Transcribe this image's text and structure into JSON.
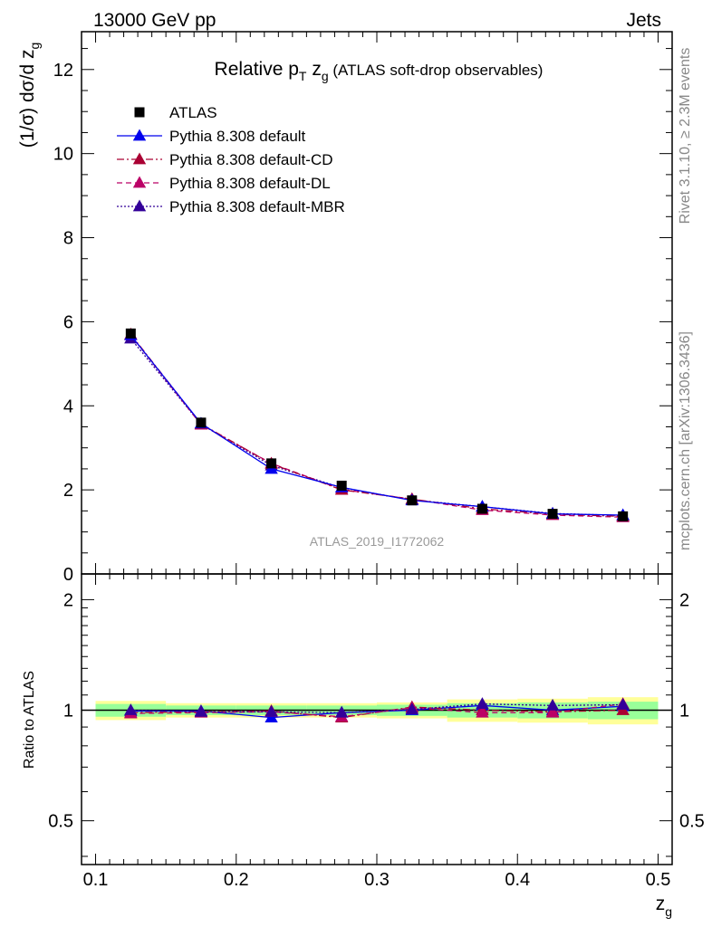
{
  "header": {
    "left": "13000 GeV pp",
    "right": "Jets"
  },
  "main_title": {
    "prefix": "Relative p",
    "sub": "T",
    "mid": " z",
    "sub2": "g",
    "suffix": " (ATLAS soft-drop observables)"
  },
  "analysis_label": "ATLAS_2019_I1772062",
  "side_labels": {
    "rivet": "Rivet 3.1.10, ≥ 2.3M events",
    "mcplots": "mcplots.cern.ch [arXiv:1306.3436]"
  },
  "y_main_label": {
    "text": "(1/σ) dσ/d z",
    "sub": "g"
  },
  "y_ratio_label": "Ratio to ATLAS",
  "x_label": {
    "text": "z",
    "sub": "g"
  },
  "colors": {
    "data": "#000000",
    "default": "#0000ee",
    "default_cd": "#aa0033",
    "default_dl": "#bb0066",
    "default_mbr": "#330099",
    "band_inner": "#99ff99",
    "band_outer": "#ffff99"
  },
  "chart_data": [
    {
      "type": "line",
      "panel": "main",
      "x": [
        0.125,
        0.175,
        0.225,
        0.275,
        0.325,
        0.375,
        0.425,
        0.475
      ],
      "xlim": [
        0.09,
        0.51
      ],
      "ylim": [
        0,
        12.9
      ],
      "xticks": [
        "0.1",
        "0.2",
        "0.3",
        "0.4",
        "0.5"
      ],
      "yticks": [
        "0",
        "2",
        "4",
        "6",
        "8",
        "10",
        "12"
      ],
      "series": [
        {
          "name": "ATLAS",
          "style": "data",
          "marker": "square",
          "values": [
            5.72,
            3.6,
            2.63,
            2.1,
            1.75,
            1.55,
            1.43,
            1.37
          ]
        },
        {
          "name": "Pythia 8.308 default",
          "style": "solid",
          "marker": "triangle",
          "values": [
            5.68,
            3.58,
            2.5,
            2.06,
            1.75,
            1.6,
            1.43,
            1.4
          ]
        },
        {
          "name": "Pythia 8.308 default-CD",
          "style": "dashdot",
          "marker": "triangle",
          "values": [
            5.7,
            3.57,
            2.62,
            2.0,
            1.78,
            1.55,
            1.42,
            1.37
          ]
        },
        {
          "name": "Pythia 8.308 default-DL",
          "style": "dash",
          "marker": "triangle",
          "values": [
            5.68,
            3.55,
            2.63,
            2.01,
            1.78,
            1.52,
            1.4,
            1.35
          ]
        },
        {
          "name": "Pythia 8.308 default-MBR",
          "style": "dot",
          "marker": "triangle",
          "values": [
            5.6,
            3.56,
            2.58,
            2.05,
            1.76,
            1.6,
            1.44,
            1.39
          ]
        }
      ]
    },
    {
      "type": "line",
      "panel": "ratio",
      "x": [
        0.125,
        0.175,
        0.225,
        0.275,
        0.325,
        0.375,
        0.425,
        0.475
      ],
      "xlim": [
        0.09,
        0.51
      ],
      "ylim": [
        0.38,
        2.35
      ],
      "log_y": true,
      "xticks": [
        "0.1",
        "0.2",
        "0.3",
        "0.4",
        "0.5"
      ],
      "yticks": [
        "0.5",
        "1",
        "2"
      ],
      "bands": {
        "inner": [
          0.04,
          0.03,
          0.03,
          0.03,
          0.035,
          0.045,
          0.05,
          0.055
        ],
        "outer": [
          0.06,
          0.045,
          0.045,
          0.045,
          0.05,
          0.07,
          0.075,
          0.085
        ]
      },
      "series": [
        {
          "name": "Pythia 8.308 default",
          "style": "solid",
          "values": [
            0.995,
            0.995,
            0.955,
            0.985,
            1.0,
            1.03,
            1.0,
            1.025
          ]
        },
        {
          "name": "Pythia 8.308 default-CD",
          "style": "dashdot",
          "values": [
            0.985,
            0.99,
            0.995,
            0.955,
            1.02,
            1.0,
            0.99,
            1.0
          ]
        },
        {
          "name": "Pythia 8.308 default-DL",
          "style": "dash",
          "values": [
            0.98,
            0.985,
            0.99,
            0.96,
            1.015,
            0.985,
            0.985,
            1.04
          ]
        },
        {
          "name": "Pythia 8.308 default-MBR",
          "style": "dot",
          "values": [
            1.0,
            0.99,
            0.99,
            0.985,
            1.005,
            1.04,
            1.03,
            1.035
          ]
        }
      ]
    }
  ]
}
